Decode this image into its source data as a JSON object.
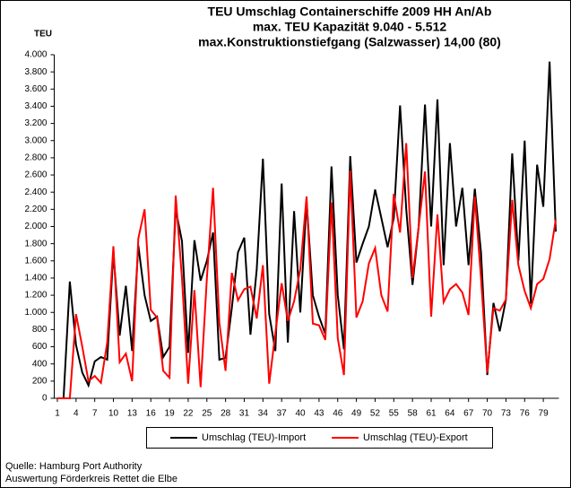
{
  "chart_data": {
    "type": "line",
    "title": "TEU Umschlag Containerschiffe 2009 HH An/Ab",
    "subtitle": [
      "max. TEU Kapazität  9.040 - 5.512",
      "max.Konstruktionstiefgang (Salzwasser) 14,00 (80)"
    ],
    "ylabel": "TEU",
    "source": [
      "Quelle: Hamburg Port Authority",
      "Auswertung Förderkreis Rettet die Elbe"
    ],
    "x": [
      1,
      2,
      3,
      4,
      5,
      6,
      7,
      8,
      9,
      10,
      11,
      12,
      13,
      14,
      15,
      16,
      17,
      18,
      19,
      20,
      21,
      22,
      23,
      24,
      25,
      26,
      27,
      28,
      29,
      30,
      31,
      32,
      33,
      34,
      35,
      36,
      37,
      38,
      39,
      40,
      41,
      42,
      43,
      44,
      45,
      46,
      47,
      48,
      49,
      50,
      51,
      52,
      53,
      54,
      55,
      56,
      57,
      58,
      59,
      60,
      61,
      62,
      63,
      64,
      65,
      66,
      67,
      68,
      69,
      70,
      71,
      72,
      73,
      74,
      75,
      76,
      77,
      78,
      79,
      80,
      81
    ],
    "xlim": [
      0.5,
      81.5
    ],
    "xticks": [
      1,
      4,
      7,
      10,
      13,
      16,
      19,
      22,
      25,
      28,
      31,
      34,
      37,
      40,
      43,
      46,
      49,
      52,
      55,
      58,
      61,
      64,
      67,
      70,
      73,
      76,
      79
    ],
    "ylim": [
      0,
      4000
    ],
    "yticks": [
      0,
      200,
      400,
      600,
      800,
      {
        "value": 1000,
        "label": "1.000"
      },
      {
        "value": 1200,
        "label": "1.200"
      },
      {
        "value": 1400,
        "label": "1.400"
      },
      {
        "value": 1600,
        "label": "1.600"
      },
      {
        "value": 1800,
        "label": "1.800"
      },
      {
        "value": 2000,
        "label": "2.000"
      },
      {
        "value": 2200,
        "label": "2.200"
      },
      {
        "value": 2400,
        "label": "2.400"
      },
      {
        "value": 2600,
        "label": "2.600"
      },
      {
        "value": 2800,
        "label": "2.800"
      },
      {
        "value": 3000,
        "label": "3.000"
      },
      {
        "value": 3200,
        "label": "3.200"
      },
      {
        "value": 3400,
        "label": "3.400"
      },
      {
        "value": 3600,
        "label": "3.600"
      },
      {
        "value": 3800,
        "label": "3.800"
      },
      {
        "value": 4000,
        "label": "4.000"
      }
    ],
    "grid": false,
    "legend": "bottom",
    "series": [
      {
        "name": "Umschlag (TEU)-Import",
        "color": "#000000",
        "values": [
          0,
          0,
          1360,
          620,
          300,
          150,
          430,
          480,
          450,
          1700,
          730,
          1310,
          550,
          1780,
          1200,
          900,
          950,
          480,
          600,
          2200,
          1830,
          530,
          1840,
          1370,
          1600,
          1930,
          450,
          470,
          1050,
          1700,
          1870,
          740,
          1500,
          2790,
          980,
          550,
          2500,
          650,
          2180,
          1000,
          2300,
          1200,
          950,
          750,
          2700,
          1200,
          570,
          2820,
          1580,
          1800,
          2000,
          2430,
          2100,
          1760,
          2100,
          3410,
          2200,
          1320,
          2000,
          3420,
          2000,
          3480,
          1550,
          2970,
          2000,
          2450,
          1550,
          2440,
          1700,
          270,
          1110,
          780,
          1150,
          2850,
          1600,
          3000,
          1100,
          2720,
          2230,
          3920,
          1940
        ]
      },
      {
        "name": "Umschlag (TEU)-Export",
        "color": "#ff0000",
        "values": [
          0,
          0,
          0,
          980,
          600,
          200,
          260,
          180,
          650,
          1770,
          420,
          520,
          200,
          1860,
          2200,
          1030,
          940,
          320,
          240,
          2360,
          1400,
          170,
          1260,
          130,
          1400,
          2450,
          880,
          320,
          1460,
          1140,
          1270,
          1300,
          930,
          1550,
          170,
          760,
          1340,
          900,
          1130,
          1500,
          2350,
          870,
          850,
          680,
          2280,
          700,
          270,
          2650,
          940,
          1130,
          1570,
          1750,
          1200,
          1010,
          2380,
          1930,
          2970,
          1400,
          2000,
          2640,
          950,
          2140,
          1120,
          1270,
          1330,
          1230,
          970,
          2350,
          1400,
          300,
          1050,
          1020,
          1150,
          2310,
          1550,
          1250,
          1050,
          1330,
          1390,
          1620,
          2080
        ]
      }
    ]
  }
}
